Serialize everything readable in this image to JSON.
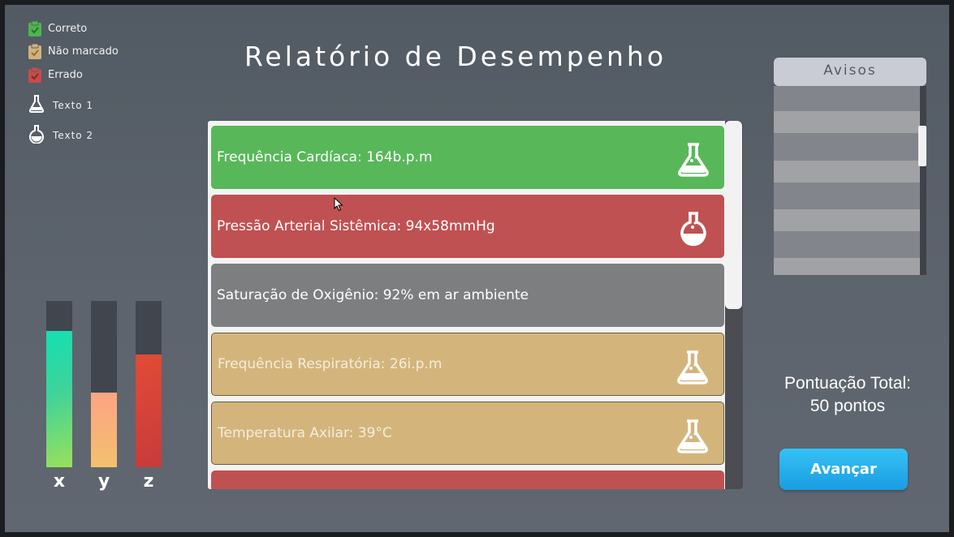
{
  "title": "Relatório de Desempenho",
  "legend": [
    {
      "label": "Correto",
      "icon": "clipboard-check-icon",
      "color": "#4fb54f"
    },
    {
      "label": "Não marcado",
      "icon": "clipboard-check-icon",
      "color": "#d2b27a"
    },
    {
      "label": "Errado",
      "icon": "clipboard-check-icon",
      "color": "#c74b4b"
    },
    {
      "label": "Texto 1",
      "icon": "conical-flask-icon"
    },
    {
      "label": "Texto 2",
      "icon": "round-flask-icon"
    }
  ],
  "bars": [
    {
      "label": "x",
      "level": 0.82
    },
    {
      "label": "y",
      "level": 0.45
    },
    {
      "label": "z",
      "level": 0.68
    }
  ],
  "report_items": [
    {
      "text": "Frequência Cardíaca: 164b.p.m",
      "status": "correct",
      "icon": "conical-flask-icon"
    },
    {
      "text": "Pressão Arterial Sistêmica: 94x58mmHg",
      "status": "wrong",
      "icon": "round-flask-icon"
    },
    {
      "text": "Saturação de Oxigênio: 92% em ar ambiente",
      "status": "neutral",
      "icon": ""
    },
    {
      "text": "Frequência Respiratória: 26i.p.m",
      "status": "unmarked",
      "icon": "conical-flask-icon"
    },
    {
      "text": "Temperatura Axilar: 39°C",
      "status": "unmarked",
      "icon": "conical-flask-icon"
    },
    {
      "text": "",
      "status": "wrong",
      "icon": ""
    }
  ],
  "avisos": {
    "title": "Avisos"
  },
  "score": {
    "label": "Pontuação Total:",
    "value": "50 pontos"
  },
  "advance_button": "Avançar"
}
